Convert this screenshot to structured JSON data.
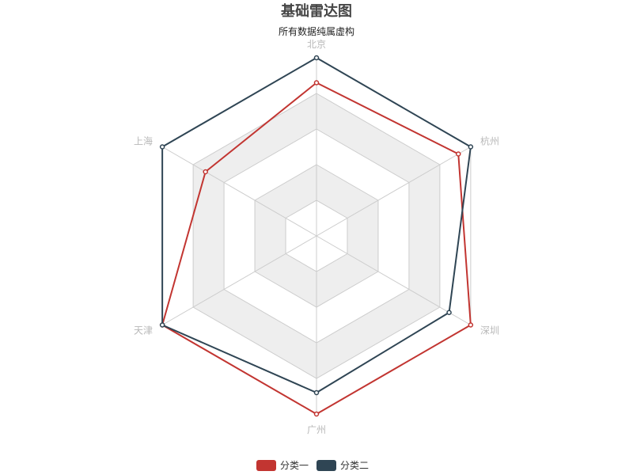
{
  "chart_data": {
    "type": "radar",
    "title": "基础雷达图",
    "subtitle": "所有数据纯属虚构",
    "indicators": [
      "北京",
      "杭州",
      "深圳",
      "广州",
      "天津",
      "上海"
    ],
    "max": 5,
    "split_number": 5,
    "split_area_colors": [
      "#ffffff",
      "#eeeeee"
    ],
    "split_line_color": "#cccccc",
    "legend_position": "bottom-center",
    "series": [
      {
        "name": "分类一",
        "color": "#c23531",
        "values": [
          4.3,
          4.6,
          5.0,
          5.0,
          5.0,
          3.6
        ]
      },
      {
        "name": "分类二",
        "color": "#2f4554",
        "values": [
          5.0,
          5.0,
          4.3,
          4.4,
          5.0,
          5.0
        ]
      }
    ]
  }
}
